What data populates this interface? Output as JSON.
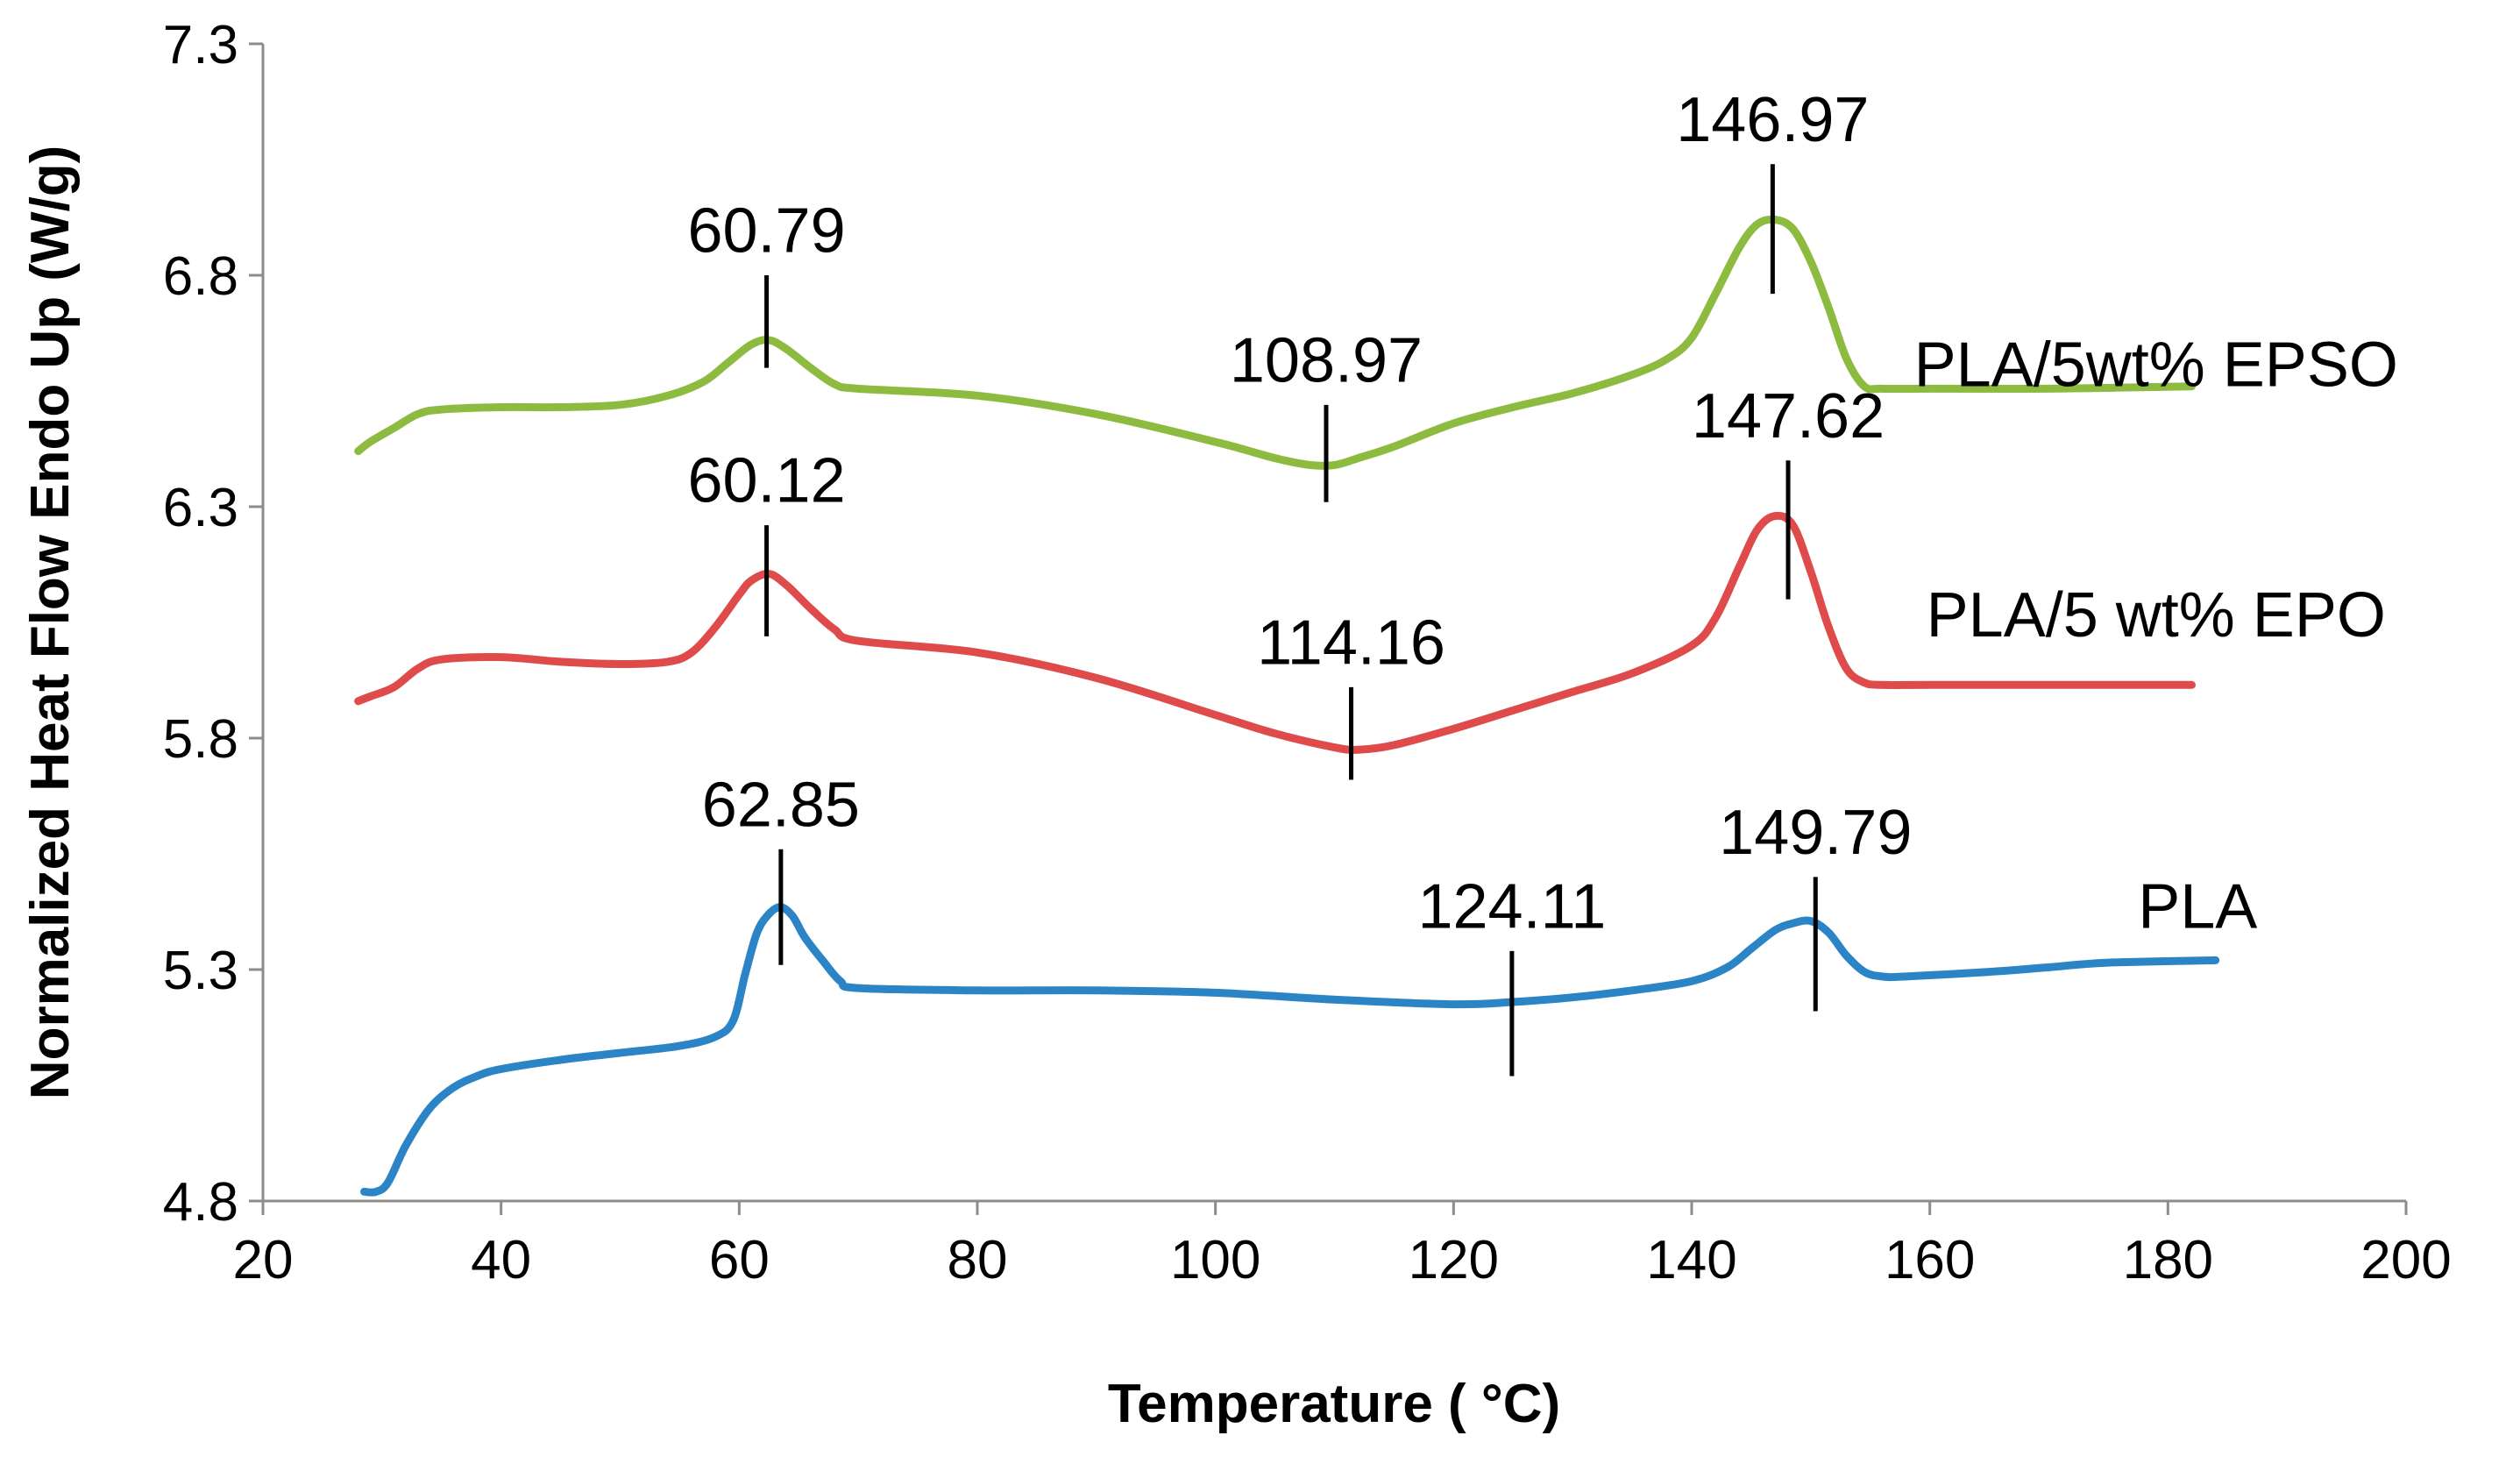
{
  "chart_data": {
    "type": "line",
    "title": "",
    "xlabel": "Temperature ( °C)",
    "ylabel": "Normalized Heat Flow Endo Up (W/g)",
    "xlim": [
      20,
      200
    ],
    "ylim": [
      4.8,
      7.3
    ],
    "xticks": [
      20,
      40,
      60,
      80,
      100,
      120,
      140,
      160,
      180,
      200
    ],
    "xtick_labels": [
      "20",
      "40",
      "60",
      "80",
      "100",
      "120",
      "140",
      "160",
      "180",
      "200"
    ],
    "yticks": [
      4.8,
      5.3,
      5.8,
      6.3,
      6.8,
      7.3
    ],
    "ytick_labels": [
      "4.8",
      "5.3",
      "5.8",
      "6.3",
      "6.8",
      "7.3"
    ],
    "grid": false,
    "series": [
      {
        "name": "PLA/5wt% EPSO",
        "label": "PLA/5wt% EPSO",
        "color": "#8dbb3f",
        "x": [
          28,
          29,
          31,
          33,
          35,
          40,
          45,
          50,
          54,
          57,
          59,
          61,
          62.5,
          64,
          66,
          68,
          70,
          80,
          90,
          100,
          105,
          108,
          110,
          112,
          115,
          120,
          125,
          130,
          135,
          138,
          140,
          142,
          144,
          145.5,
          147,
          148.5,
          150,
          151.5,
          153,
          154.5,
          156,
          160,
          170,
          182
        ],
        "y": [
          6.42,
          6.44,
          6.47,
          6.5,
          6.51,
          6.515,
          6.515,
          6.52,
          6.54,
          6.57,
          6.61,
          6.65,
          6.66,
          6.64,
          6.6,
          6.565,
          6.555,
          6.54,
          6.5,
          6.44,
          6.405,
          6.39,
          6.39,
          6.405,
          6.43,
          6.48,
          6.515,
          6.545,
          6.585,
          6.62,
          6.665,
          6.76,
          6.86,
          6.91,
          6.92,
          6.9,
          6.83,
          6.73,
          6.62,
          6.56,
          6.555,
          6.555,
          6.555,
          6.56
        ]
      },
      {
        "name": "PLA/5 wt% EPO",
        "label": "PLA/5 wt% EPO",
        "color": "#df4a4a",
        "x": [
          28,
          29,
          31,
          33,
          35,
          40,
          45,
          50,
          54,
          56,
          58,
          60,
          61,
          62.5,
          64,
          66,
          68,
          70,
          80,
          90,
          100,
          105,
          110,
          112,
          115,
          120,
          125,
          130,
          135,
          140,
          142,
          144,
          145.5,
          147,
          148.5,
          150,
          151.5,
          153,
          154.5,
          156,
          160,
          170,
          182
        ],
        "y": [
          5.88,
          5.89,
          5.91,
          5.95,
          5.97,
          5.975,
          5.965,
          5.96,
          5.965,
          5.985,
          6.04,
          6.11,
          6.14,
          6.155,
          6.13,
          6.08,
          6.035,
          6.01,
          5.985,
          5.93,
          5.85,
          5.81,
          5.78,
          5.775,
          5.785,
          5.82,
          5.86,
          5.9,
          5.94,
          6.0,
          6.06,
          6.17,
          6.25,
          6.28,
          6.26,
          6.16,
          6.04,
          5.95,
          5.92,
          5.915,
          5.915,
          5.915,
          5.915
        ]
      },
      {
        "name": "PLA",
        "label": "PLA",
        "color": "#2a84c6",
        "x": [
          28.5,
          29.5,
          30.5,
          32,
          34,
          36,
          38,
          40,
          45,
          50,
          55,
          58,
          59.5,
          60.5,
          61.5,
          62.5,
          63.5,
          64.5,
          65.5,
          67,
          68.5,
          70,
          80,
          90,
          100,
          110,
          120,
          125,
          130,
          135,
          140,
          143,
          145,
          147,
          148.5,
          150,
          151.5,
          153,
          154.5,
          156,
          158,
          165,
          170,
          175,
          184
        ],
        "y": [
          4.82,
          4.82,
          4.84,
          4.92,
          5.0,
          5.045,
          5.07,
          5.085,
          5.105,
          5.12,
          5.135,
          5.155,
          5.19,
          5.29,
          5.38,
          5.42,
          5.435,
          5.415,
          5.37,
          5.32,
          5.275,
          5.26,
          5.255,
          5.255,
          5.25,
          5.235,
          5.225,
          5.23,
          5.24,
          5.255,
          5.275,
          5.305,
          5.345,
          5.385,
          5.4,
          5.405,
          5.38,
          5.33,
          5.295,
          5.285,
          5.285,
          5.295,
          5.305,
          5.315,
          5.32
        ]
      }
    ],
    "annotations": [
      {
        "text": "60.79",
        "x": 62.3,
        "y1": 6.6,
        "y2": 6.8,
        "label_y": 6.85
      },
      {
        "text": "108.97",
        "x": 109.3,
        "y1": 6.31,
        "y2": 6.52,
        "label_y": 6.57
      },
      {
        "text": "146.97",
        "x": 146.8,
        "y1": 6.76,
        "y2": 7.04,
        "label_y": 7.09
      },
      {
        "text": "60.12",
        "x": 62.3,
        "y1": 6.02,
        "y2": 6.26,
        "label_y": 6.31
      },
      {
        "text": "114.16",
        "x": 111.4,
        "y1": 5.71,
        "y2": 5.91,
        "label_y": 5.96
      },
      {
        "text": "147.62",
        "x": 148.1,
        "y1": 6.1,
        "y2": 6.4,
        "label_y": 6.45
      },
      {
        "text": "62.85",
        "x": 63.5,
        "y1": 5.31,
        "y2": 5.56,
        "label_y": 5.61
      },
      {
        "text": "124.11",
        "x": 124.9,
        "y1": 5.07,
        "y2": 5.34,
        "label_y": 5.39
      },
      {
        "text": "149.79",
        "x": 150.4,
        "y1": 5.21,
        "y2": 5.5,
        "label_y": 5.55
      }
    ],
    "series_label_positions": [
      {
        "series": 0,
        "x": 179,
        "y": 6.56
      },
      {
        "series": 1,
        "x": 179,
        "y": 6.02
      },
      {
        "series": 2,
        "x": 182.5,
        "y": 5.39
      }
    ]
  }
}
